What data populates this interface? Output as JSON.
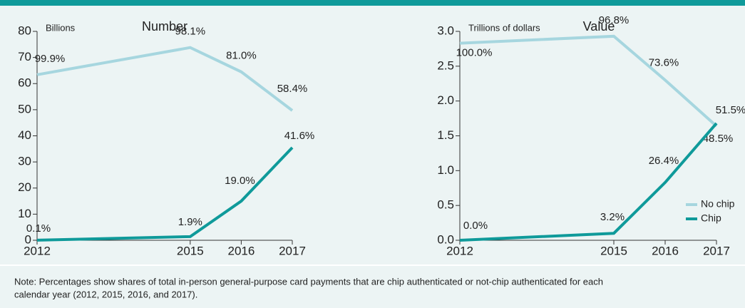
{
  "chart_data": [
    {
      "type": "line",
      "title": "Number",
      "y_unit": "Billions",
      "x": [
        2012,
        2015,
        2016,
        2017
      ],
      "xlim": [
        2012,
        2017
      ],
      "xticks": [
        2012,
        2015,
        2016,
        2017
      ],
      "ylim": [
        0,
        80
      ],
      "yticks": [
        0,
        10,
        20,
        30,
        40,
        50,
        60,
        70,
        80
      ],
      "series": [
        {
          "name": "No chip",
          "color": "#a6d6df",
          "values": [
            63.4,
            73.8,
            64.5,
            49.7
          ],
          "labels": [
            "99.9%",
            "98.1%",
            "81.0%",
            "58.4%"
          ]
        },
        {
          "name": "Chip",
          "color": "#0f9a9a",
          "values": [
            0.05,
            1.4,
            15,
            35.5
          ],
          "labels": [
            "0.1%",
            "1.9%",
            "19.0%",
            "41.6%"
          ]
        }
      ]
    },
    {
      "type": "line",
      "title": "Value",
      "y_unit": "Trillions of dollars",
      "x": [
        2012,
        2015,
        2016,
        2017
      ],
      "xlim": [
        2012,
        2017
      ],
      "xticks": [
        2012,
        2015,
        2016,
        2017
      ],
      "ylim": [
        0,
        3
      ],
      "yticks": [
        {
          "value": 0,
          "label": "0.0"
        },
        0.5,
        {
          "value": 1,
          "label": "1.0"
        },
        1.5,
        {
          "value": 2,
          "label": "2.0"
        },
        2.5,
        {
          "value": 3,
          "label": "3.0"
        }
      ],
      "legend": "lower right",
      "series": [
        {
          "name": "No chip",
          "color": "#a6d6df",
          "values": [
            2.83,
            2.93,
            2.3,
            1.64
          ],
          "labels": [
            "100.0%",
            "96.8%",
            "73.6%",
            "48.5%"
          ]
        },
        {
          "name": "Chip",
          "color": "#0f9a9a",
          "values": [
            0,
            0.1,
            0.83,
            1.68
          ],
          "labels": [
            "0.0%",
            "3.2%",
            "26.4%",
            "51.5%"
          ]
        }
      ]
    }
  ],
  "note": [
    "Note: Percentages show shares of total in-person general-purpose card payments that are chip authenticated or not-chip authenticated for each",
    "calendar year (2012, 2015, 2016, and 2017)."
  ]
}
